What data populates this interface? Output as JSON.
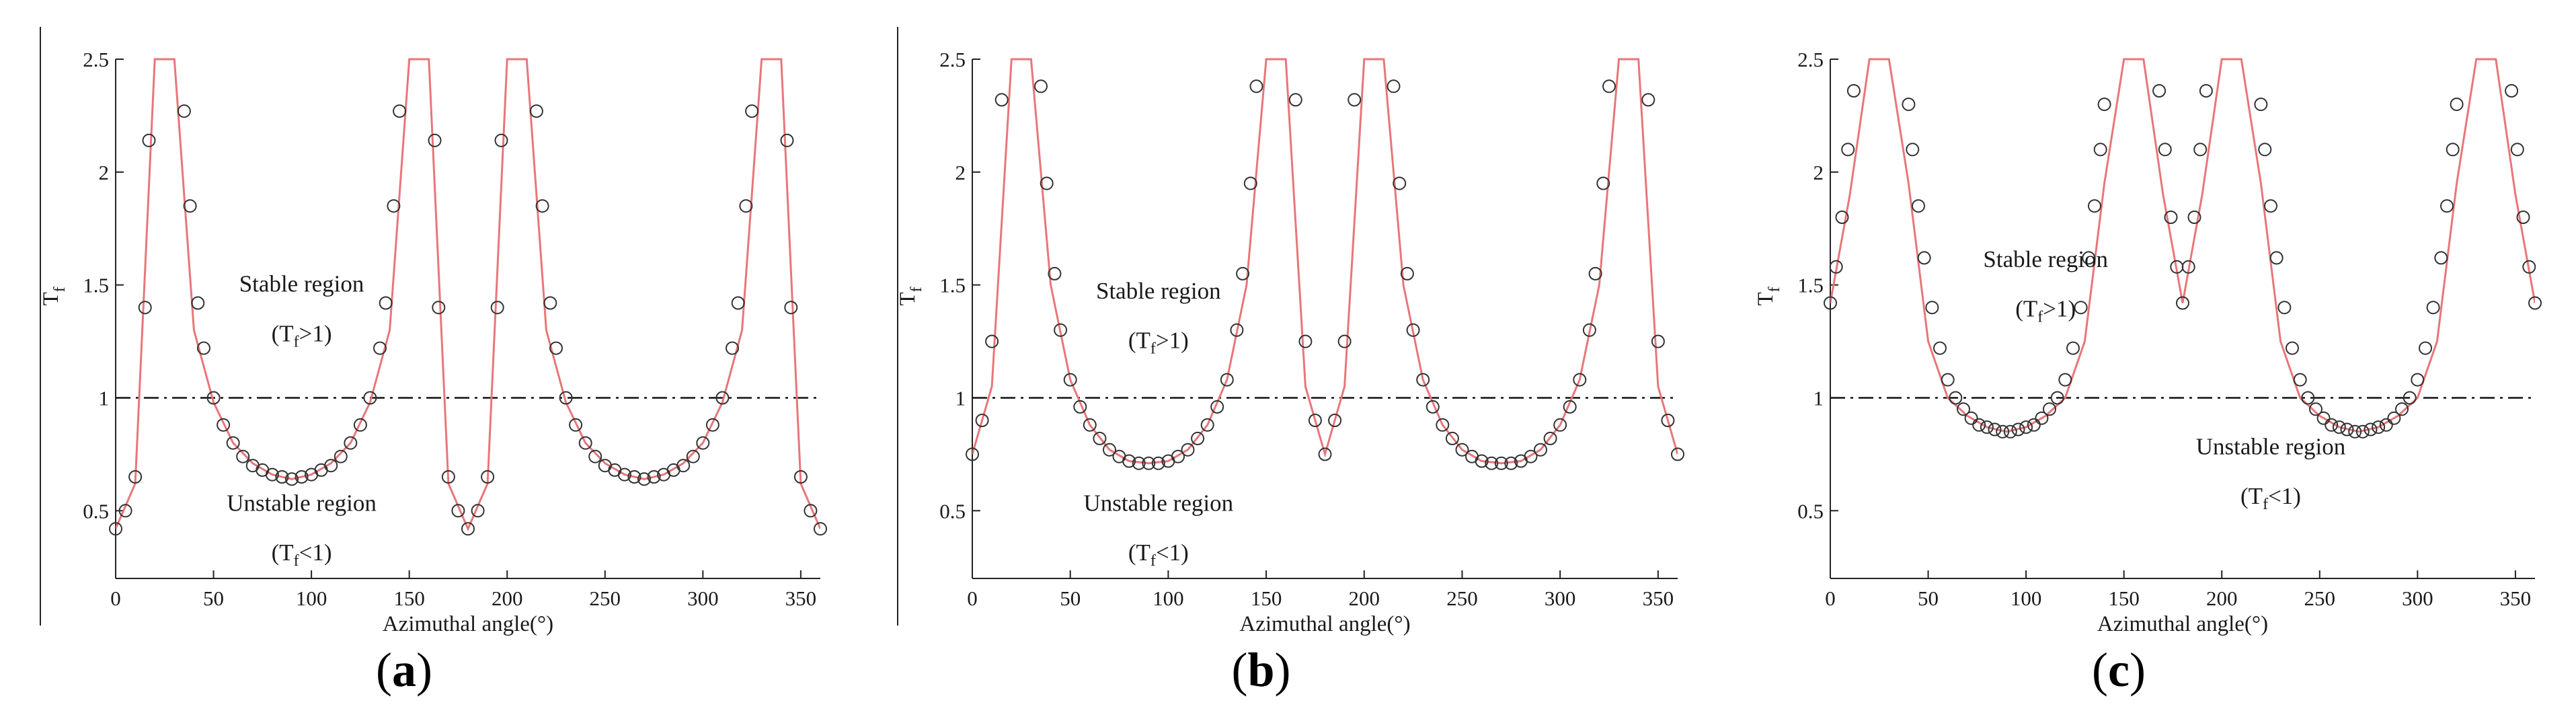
{
  "chart_data": [
    {
      "type": "line",
      "subfigure_label": "a",
      "xlabel": "Azimuthal angle(°)",
      "ylabel": "T",
      "ylabel_sub": "f",
      "xlim": [
        0,
        360
      ],
      "ylim": [
        0.2,
        2.5
      ],
      "xticks": [
        0,
        50,
        100,
        150,
        200,
        250,
        300,
        350
      ],
      "yticks": [
        0.5,
        1,
        1.5,
        2,
        2.5
      ],
      "threshold": 1,
      "annotations": {
        "stable": {
          "title": "Stable region",
          "pre": "(T",
          "sub": "f",
          "post": ">1)",
          "x": 95,
          "y": 1.47,
          "y2": 1.25
        },
        "unstable": {
          "title": "Unstable region",
          "pre": "(T",
          "sub": "f",
          "post": "<1)",
          "x": 95,
          "y": 0.5,
          "y2": 0.28
        }
      },
      "series": [
        {
          "name": "curve",
          "style": "line",
          "color": "#e8767a",
          "x": [
            0,
            10,
            20,
            30,
            40,
            50,
            60,
            70,
            80,
            90,
            100,
            110,
            120,
            130,
            140,
            150,
            160,
            170,
            180,
            190,
            200,
            210,
            220,
            230,
            240,
            250,
            260,
            270,
            280,
            290,
            300,
            310,
            320,
            330,
            340,
            350,
            360
          ],
          "y": [
            0.42,
            0.62,
            2.5,
            2.5,
            1.3,
            0.98,
            0.8,
            0.71,
            0.66,
            0.64,
            0.66,
            0.71,
            0.8,
            0.98,
            1.3,
            2.5,
            2.5,
            0.62,
            0.42,
            0.62,
            2.5,
            2.5,
            1.3,
            0.98,
            0.8,
            0.71,
            0.66,
            0.64,
            0.66,
            0.71,
            0.8,
            0.98,
            1.3,
            2.5,
            2.5,
            0.62,
            0.42
          ]
        },
        {
          "name": "markers",
          "style": "circle-markers",
          "color": "#333333",
          "x": [
            0,
            5,
            10,
            15,
            17,
            35,
            38,
            42,
            45,
            50,
            55,
            60,
            65,
            70,
            75,
            80,
            85,
            90,
            95,
            100,
            105,
            110,
            115,
            120,
            125,
            130,
            135,
            138,
            142,
            145,
            163,
            165,
            170,
            175,
            180,
            185,
            190,
            195,
            197,
            215,
            218,
            222,
            225,
            230,
            235,
            240,
            245,
            250,
            255,
            260,
            265,
            270,
            275,
            280,
            285,
            290,
            295,
            300,
            305,
            310,
            315,
            318,
            322,
            325,
            343,
            345,
            350,
            355,
            360
          ],
          "y": [
            0.42,
            0.5,
            0.65,
            1.4,
            2.14,
            2.27,
            1.85,
            1.42,
            1.22,
            1.0,
            0.88,
            0.8,
            0.74,
            0.7,
            0.68,
            0.66,
            0.65,
            0.64,
            0.65,
            0.66,
            0.68,
            0.7,
            0.74,
            0.8,
            0.88,
            1.0,
            1.22,
            1.42,
            1.85,
            2.27,
            2.14,
            1.4,
            0.65,
            0.5,
            0.42,
            0.5,
            0.65,
            1.4,
            2.14,
            2.27,
            1.85,
            1.42,
            1.22,
            1.0,
            0.88,
            0.8,
            0.74,
            0.7,
            0.68,
            0.66,
            0.65,
            0.64,
            0.65,
            0.66,
            0.68,
            0.7,
            0.74,
            0.8,
            0.88,
            1.0,
            1.22,
            1.42,
            1.85,
            2.27,
            2.14,
            1.4,
            0.65,
            0.5,
            0.42
          ]
        }
      ]
    },
    {
      "type": "line",
      "subfigure_label": "b",
      "xlabel": "Azimuthal angle(°)",
      "ylabel": "T",
      "ylabel_sub": "f",
      "xlim": [
        0,
        360
      ],
      "ylim": [
        0.2,
        2.5
      ],
      "xticks": [
        0,
        50,
        100,
        150,
        200,
        250,
        300,
        350
      ],
      "yticks": [
        0.5,
        1,
        1.5,
        2,
        2.5
      ],
      "threshold": 1,
      "annotations": {
        "stable": {
          "title": "Stable region",
          "pre": "(T",
          "sub": "f",
          "post": ">1)",
          "x": 95,
          "y": 1.44,
          "y2": 1.22
        },
        "unstable": {
          "title": "Unstable region",
          "pre": "(T",
          "sub": "f",
          "post": "<1)",
          "x": 95,
          "y": 0.5,
          "y2": 0.28
        }
      },
      "series": [
        {
          "name": "curve",
          "style": "line",
          "color": "#e8767a",
          "x": [
            0,
            10,
            20,
            30,
            40,
            50,
            60,
            70,
            80,
            90,
            100,
            110,
            120,
            130,
            140,
            150,
            160,
            170,
            180,
            190,
            200,
            210,
            220,
            230,
            240,
            250,
            260,
            270,
            280,
            290,
            300,
            310,
            320,
            330,
            340,
            350,
            360
          ],
          "y": [
            0.75,
            1.05,
            2.5,
            2.5,
            1.5,
            1.08,
            0.88,
            0.77,
            0.72,
            0.71,
            0.72,
            0.77,
            0.88,
            1.08,
            1.5,
            2.5,
            2.5,
            1.05,
            0.75,
            1.05,
            2.5,
            2.5,
            1.5,
            1.08,
            0.88,
            0.77,
            0.72,
            0.71,
            0.72,
            0.77,
            0.88,
            1.08,
            1.5,
            2.5,
            2.5,
            1.05,
            0.75
          ]
        },
        {
          "name": "markers",
          "style": "circle-markers",
          "color": "#333333",
          "x": [
            0,
            5,
            10,
            15,
            35,
            38,
            42,
            45,
            50,
            55,
            60,
            65,
            70,
            75,
            80,
            85,
            90,
            95,
            100,
            105,
            110,
            115,
            120,
            125,
            130,
            135,
            138,
            142,
            145,
            165,
            170,
            175,
            180,
            185,
            190,
            195,
            215,
            218,
            222,
            225,
            230,
            235,
            240,
            245,
            250,
            255,
            260,
            265,
            270,
            275,
            280,
            285,
            290,
            295,
            300,
            305,
            310,
            315,
            318,
            322,
            325,
            345,
            350,
            355,
            360
          ],
          "y": [
            0.75,
            0.9,
            1.25,
            2.32,
            2.38,
            1.95,
            1.55,
            1.3,
            1.08,
            0.96,
            0.88,
            0.82,
            0.77,
            0.74,
            0.72,
            0.71,
            0.71,
            0.71,
            0.72,
            0.74,
            0.77,
            0.82,
            0.88,
            0.96,
            1.08,
            1.3,
            1.55,
            1.95,
            2.38,
            2.32,
            1.25,
            0.9,
            0.75,
            0.9,
            1.25,
            2.32,
            2.38,
            1.95,
            1.55,
            1.3,
            1.08,
            0.96,
            0.88,
            0.82,
            0.77,
            0.74,
            0.72,
            0.71,
            0.71,
            0.71,
            0.72,
            0.74,
            0.77,
            0.82,
            0.88,
            0.96,
            1.08,
            1.3,
            1.55,
            1.95,
            2.38,
            2.32,
            1.25,
            0.9,
            0.75
          ]
        }
      ]
    },
    {
      "type": "line",
      "subfigure_label": "c",
      "xlabel": "Azimuthal angle(°)",
      "ylabel": "T",
      "ylabel_sub": "f",
      "xlim": [
        0,
        360
      ],
      "ylim": [
        0.2,
        2.5
      ],
      "xticks": [
        0,
        50,
        100,
        150,
        200,
        250,
        300,
        350
      ],
      "yticks": [
        0.5,
        1,
        1.5,
        2,
        2.5
      ],
      "threshold": 1,
      "annotations": {
        "stable": {
          "title": "Stable region",
          "pre": "(T",
          "sub": "f",
          "post": ">1)",
          "x": 110,
          "y": 1.58,
          "y2": 1.36
        },
        "unstable": {
          "title": "Unstable region",
          "pre": "(T",
          "sub": "f",
          "post": "<1)",
          "x": 225,
          "y": 0.75,
          "y2": 0.53
        }
      },
      "series": [
        {
          "name": "curve",
          "style": "line",
          "color": "#e8767a",
          "x": [
            0,
            10,
            20,
            30,
            40,
            50,
            60,
            70,
            80,
            90,
            100,
            110,
            120,
            130,
            140,
            150,
            160,
            170,
            180,
            190,
            200,
            210,
            220,
            230,
            240,
            250,
            260,
            270,
            280,
            290,
            300,
            310,
            320,
            330,
            340,
            350,
            360
          ],
          "y": [
            1.42,
            1.9,
            2.5,
            2.5,
            1.95,
            1.25,
            1.0,
            0.92,
            0.87,
            0.85,
            0.87,
            0.92,
            1.0,
            1.25,
            1.95,
            2.5,
            2.5,
            1.9,
            1.42,
            1.9,
            2.5,
            2.5,
            1.95,
            1.25,
            1.0,
            0.92,
            0.87,
            0.85,
            0.87,
            0.92,
            1.0,
            1.25,
            1.95,
            2.5,
            2.5,
            1.9,
            1.42
          ]
        },
        {
          "name": "markers",
          "style": "circle-markers",
          "color": "#333333",
          "x": [
            0,
            3,
            6,
            9,
            12,
            40,
            42,
            45,
            48,
            52,
            56,
            60,
            64,
            68,
            72,
            76,
            80,
            84,
            88,
            92,
            96,
            100,
            104,
            108,
            112,
            116,
            120,
            124,
            128,
            132,
            135,
            138,
            140,
            168,
            171,
            174,
            177,
            180,
            183,
            186,
            189,
            192,
            220,
            222,
            225,
            228,
            232,
            236,
            240,
            244,
            248,
            252,
            256,
            260,
            264,
            268,
            272,
            276,
            280,
            284,
            288,
            292,
            296,
            300,
            304,
            308,
            312,
            315,
            318,
            320,
            348,
            351,
            354,
            357,
            360
          ],
          "y": [
            1.42,
            1.58,
            1.8,
            2.1,
            2.36,
            2.3,
            2.1,
            1.85,
            1.62,
            1.4,
            1.22,
            1.08,
            1.0,
            0.95,
            0.91,
            0.88,
            0.87,
            0.86,
            0.85,
            0.85,
            0.86,
            0.87,
            0.88,
            0.91,
            0.95,
            1.0,
            1.08,
            1.22,
            1.4,
            1.62,
            1.85,
            2.1,
            2.3,
            2.36,
            2.1,
            1.8,
            1.58,
            1.42,
            1.58,
            1.8,
            2.1,
            2.36,
            2.3,
            2.1,
            1.85,
            1.62,
            1.4,
            1.22,
            1.08,
            1.0,
            0.95,
            0.91,
            0.88,
            0.87,
            0.86,
            0.85,
            0.85,
            0.86,
            0.87,
            0.88,
            0.91,
            0.95,
            1.0,
            1.08,
            1.22,
            1.4,
            1.62,
            1.85,
            2.1,
            2.3,
            2.36,
            2.1,
            1.8,
            1.58,
            1.42
          ]
        }
      ]
    }
  ]
}
